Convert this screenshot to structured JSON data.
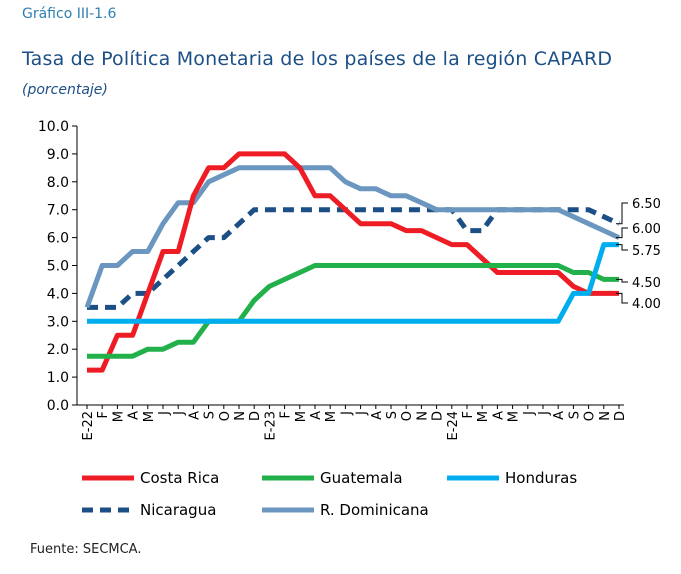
{
  "header": {
    "kicker": "Gráfico III-1.6",
    "title": "Tasa de Política Monetaria de los países de la región CAPARD",
    "subtitle": "(porcentaje)"
  },
  "footer": {
    "source": "Fuente: SECMCA."
  },
  "chart_data": {
    "type": "line",
    "ylim": [
      0,
      10
    ],
    "yticks": [
      "0.0",
      "1.0",
      "2.0",
      "3.0",
      "4.0",
      "5.0",
      "6.0",
      "7.0",
      "8.0",
      "9.0",
      "10.0"
    ],
    "categories": [
      "E-22",
      "F",
      "M",
      "A",
      "M",
      "J",
      "J",
      "A",
      "S",
      "O",
      "N",
      "D",
      "E-23",
      "F",
      "M",
      "A",
      "M",
      "J",
      "J",
      "A",
      "S",
      "O",
      "N",
      "D",
      "E-24",
      "F",
      "M",
      "A",
      "M",
      "J",
      "J",
      "A",
      "S",
      "O",
      "N",
      "D"
    ],
    "grid": false,
    "legend_position": "bottom",
    "end_labels": [
      "6.50",
      "6.00",
      "5.75",
      "4.50",
      "4.00"
    ],
    "series": [
      {
        "name": "Costa Rica",
        "color": "#ee1c24",
        "dash": "solid",
        "values": [
          1.25,
          1.25,
          2.5,
          2.5,
          4.0,
          5.5,
          5.5,
          7.5,
          8.5,
          8.5,
          9.0,
          9.0,
          9.0,
          9.0,
          8.5,
          7.5,
          7.5,
          7.0,
          6.5,
          6.5,
          6.5,
          6.25,
          6.25,
          6.0,
          5.75,
          5.75,
          5.25,
          4.75,
          4.75,
          4.75,
          4.75,
          4.75,
          4.25,
          4.0,
          4.0,
          4.0
        ]
      },
      {
        "name": "Guatemala",
        "color": "#22b04b",
        "dash": "solid",
        "values": [
          1.75,
          1.75,
          1.75,
          1.75,
          2.0,
          2.0,
          2.25,
          2.25,
          3.0,
          3.0,
          3.0,
          3.75,
          4.25,
          4.5,
          4.75,
          5.0,
          5.0,
          5.0,
          5.0,
          5.0,
          5.0,
          5.0,
          5.0,
          5.0,
          5.0,
          5.0,
          5.0,
          5.0,
          5.0,
          5.0,
          5.0,
          5.0,
          4.75,
          4.75,
          4.5,
          4.5
        ]
      },
      {
        "name": "Honduras",
        "color": "#00aeef",
        "dash": "solid",
        "values": [
          3.0,
          3.0,
          3.0,
          3.0,
          3.0,
          3.0,
          3.0,
          3.0,
          3.0,
          3.0,
          3.0,
          3.0,
          3.0,
          3.0,
          3.0,
          3.0,
          3.0,
          3.0,
          3.0,
          3.0,
          3.0,
          3.0,
          3.0,
          3.0,
          3.0,
          3.0,
          3.0,
          3.0,
          3.0,
          3.0,
          3.0,
          3.0,
          4.0,
          4.0,
          5.75,
          5.75
        ]
      },
      {
        "name": "Nicaragua",
        "color": "#1c4f86",
        "dash": "dashed",
        "values": [
          3.5,
          3.5,
          3.5,
          4.0,
          4.0,
          4.5,
          5.0,
          5.5,
          6.0,
          6.0,
          6.5,
          7.0,
          7.0,
          7.0,
          7.0,
          7.0,
          7.0,
          7.0,
          7.0,
          7.0,
          7.0,
          7.0,
          7.0,
          7.0,
          7.0,
          6.25,
          6.25,
          7.0,
          7.0,
          7.0,
          7.0,
          7.0,
          7.0,
          7.0,
          6.75,
          6.5
        ]
      },
      {
        "name": "R. Dominicana",
        "color": "#6a96bf",
        "dash": "solid",
        "values": [
          3.5,
          5.0,
          5.0,
          5.5,
          5.5,
          6.5,
          7.25,
          7.25,
          8.0,
          8.25,
          8.5,
          8.5,
          8.5,
          8.5,
          8.5,
          8.5,
          8.5,
          8.0,
          7.75,
          7.75,
          7.5,
          7.5,
          7.25,
          7.0,
          7.0,
          7.0,
          7.0,
          7.0,
          7.0,
          7.0,
          7.0,
          7.0,
          6.75,
          6.5,
          6.25,
          6.0
        ]
      }
    ]
  }
}
